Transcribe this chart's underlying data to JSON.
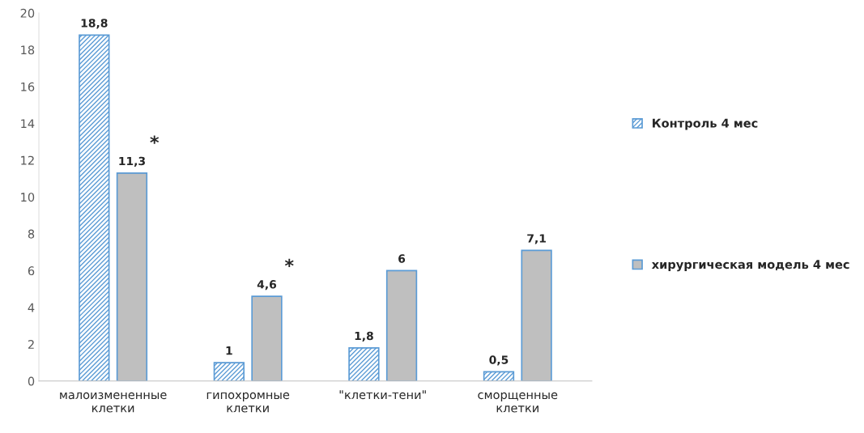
{
  "chart_data": {
    "type": "bar",
    "categories": [
      "малоизмененные\nклетки",
      "гипохромные\nклетки",
      "\"клетки-тени\"",
      "сморщенные\nклетки"
    ],
    "series": [
      {
        "name": "Контроль 4 мес",
        "color": "#5b9bd5",
        "values": [
          18.8,
          1,
          1.8,
          0.5
        ],
        "value_labels": [
          "18,8",
          "1",
          "1,8",
          "0,5"
        ]
      },
      {
        "name": "хирургическая модель 4 мес",
        "color": "#bfbfbf",
        "values": [
          11.3,
          4.6,
          6,
          7.1
        ],
        "value_labels": [
          "11,3",
          "4,6",
          "6",
          "7,1"
        ]
      }
    ],
    "ylim": [
      0,
      20
    ],
    "yticks": [
      0,
      2,
      4,
      6,
      8,
      10,
      12,
      14,
      16,
      18,
      20
    ],
    "grid": false,
    "legend": "right",
    "annotations": [
      "*",
      "*"
    ]
  }
}
